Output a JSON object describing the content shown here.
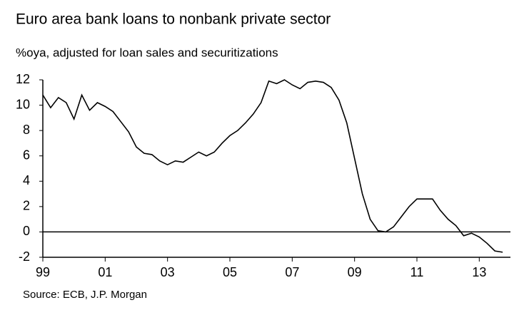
{
  "chart_data": {
    "type": "line",
    "title": "Euro area bank loans to nonbank private sector",
    "subtitle": "%oya, adjusted for loan sales and securitizations",
    "source": "Source: ECB, J.P. Morgan",
    "x": [
      1999.0,
      1999.25,
      1999.5,
      1999.75,
      2000.0,
      2000.25,
      2000.5,
      2000.75,
      2001.0,
      2001.25,
      2001.5,
      2001.75,
      2002.0,
      2002.25,
      2002.5,
      2002.75,
      2003.0,
      2003.25,
      2003.5,
      2003.75,
      2004.0,
      2004.25,
      2004.5,
      2004.75,
      2005.0,
      2005.25,
      2005.5,
      2005.75,
      2006.0,
      2006.25,
      2006.5,
      2006.75,
      2007.0,
      2007.25,
      2007.5,
      2007.75,
      2008.0,
      2008.25,
      2008.5,
      2008.75,
      2009.0,
      2009.25,
      2009.5,
      2009.75,
      2010.0,
      2010.25,
      2010.5,
      2010.75,
      2011.0,
      2011.25,
      2011.5,
      2011.75,
      2012.0,
      2012.25,
      2012.5,
      2012.75,
      2013.0,
      2013.25,
      2013.5,
      2013.75
    ],
    "series": [
      {
        "color": "#000000",
        "values": [
          10.8,
          9.8,
          10.6,
          10.2,
          8.9,
          10.8,
          9.6,
          10.2,
          9.9,
          9.5,
          8.7,
          7.9,
          6.7,
          6.2,
          6.1,
          5.6,
          5.3,
          5.6,
          5.5,
          5.9,
          6.3,
          6.0,
          6.3,
          7.0,
          7.6,
          8.0,
          8.6,
          9.3,
          10.2,
          11.9,
          11.7,
          12.0,
          11.6,
          11.3,
          11.8,
          11.9,
          11.8,
          11.4,
          10.4,
          8.6,
          5.8,
          3.0,
          1.0,
          0.1,
          0.0,
          0.4,
          1.2,
          2.0,
          2.6,
          2.6,
          2.6,
          1.7,
          1.0,
          0.5,
          -0.3,
          -0.1,
          -0.4,
          -0.9,
          -1.5,
          -1.6
        ]
      }
    ],
    "xlim": [
      1999,
      2014
    ],
    "xticks": [
      {
        "value": 1999,
        "label": "99"
      },
      {
        "value": 2001,
        "label": "01"
      },
      {
        "value": 2003,
        "label": "03"
      },
      {
        "value": 2005,
        "label": "05"
      },
      {
        "value": 2007,
        "label": "07"
      },
      {
        "value": 2009,
        "label": "09"
      },
      {
        "value": 2011,
        "label": "11"
      },
      {
        "value": 2013,
        "label": "13"
      }
    ],
    "ylim": [
      -2,
      12
    ],
    "yticks": [
      -2,
      0,
      2,
      4,
      6,
      8,
      10,
      12
    ]
  }
}
